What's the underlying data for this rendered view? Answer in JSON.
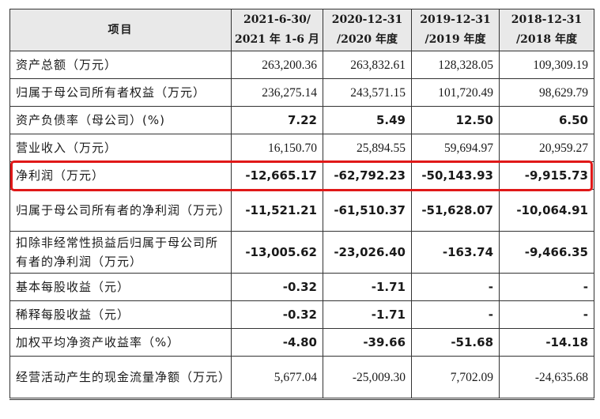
{
  "table": {
    "header": {
      "item": "项目",
      "periods": [
        {
          "line1": "2021-6-30/",
          "line2": "2021 年 1-6 月"
        },
        {
          "line1": "2020-12-31",
          "line2": "/2020 年度"
        },
        {
          "line1": "2019-12-31",
          "line2": "/2019 年度"
        },
        {
          "line1": "2018-12-31",
          "line2": "/2018 年度"
        }
      ]
    },
    "rows": [
      {
        "label": "资产总额（万元）",
        "values": [
          "263,200.36",
          "263,832.61",
          "128,328.05",
          "109,309.19"
        ],
        "bold": false,
        "tall": false
      },
      {
        "label": "归属于母公司所有者权益（万元）",
        "values": [
          "236,275.14",
          "243,571.15",
          "101,720.49",
          "98,629.79"
        ],
        "bold": false,
        "tall": false
      },
      {
        "label": "资产负债率（母公司）(%)",
        "values": [
          "7.22",
          "5.49",
          "12.50",
          "6.50"
        ],
        "bold": true,
        "tall": false
      },
      {
        "label": "营业收入（万元）",
        "values": [
          "16,150.70",
          "25,894.55",
          "59,694.97",
          "20,959.27"
        ],
        "bold": false,
        "tall": false
      },
      {
        "label": "净利润（万元）",
        "values": [
          "-12,665.17",
          "-62,792.23",
          "-50,143.93",
          "-9,915.73"
        ],
        "bold": true,
        "tall": false
      },
      {
        "label": "归属于母公司所有者的净利润（万元）",
        "values": [
          "-11,521.21",
          "-61,510.37",
          "-51,628.07",
          "-10,064.91"
        ],
        "bold": true,
        "tall": true
      },
      {
        "label": "扣除非经常性损益后归属于母公司所有者的净利润（万元）",
        "values": [
          "-13,005.62",
          "-23,026.40",
          "-163.74",
          "-9,466.35"
        ],
        "bold": true,
        "tall": true
      },
      {
        "label": "基本每股收益（元）",
        "values": [
          "-0.32",
          "-1.71",
          "-",
          "-"
        ],
        "bold": true,
        "tall": false
      },
      {
        "label": "稀释每股收益（元）",
        "values": [
          "-0.32",
          "-1.71",
          "-",
          "-"
        ],
        "bold": true,
        "tall": false
      },
      {
        "label": "加权平均净资产收益率（%）",
        "values": [
          "-4.80",
          "-39.66",
          "-51.68",
          "-14.18"
        ],
        "bold": true,
        "tall": false
      },
      {
        "label": "经营活动产生的现金流量净额（万元）",
        "values": [
          "5,677.04",
          "-25,009.30",
          "7,702.09",
          "-24,635.68"
        ],
        "bold": false,
        "tall": true
      }
    ],
    "highlight_row_label": "净利润（万元）",
    "highlight_color": "#e01818"
  }
}
